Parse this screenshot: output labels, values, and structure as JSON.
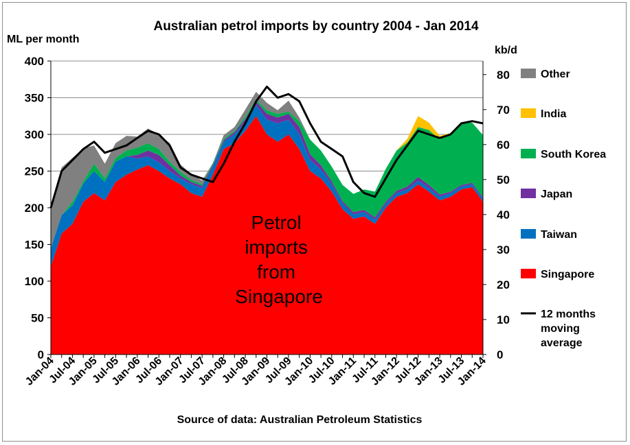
{
  "chart_data": {
    "type": "area",
    "stacked": true,
    "title": "Australian  petrol  imports  by country  2004 - Jan 2014",
    "ylabel": "ML per month",
    "y2label": "kb/d",
    "source": "Source of data: Australian Petroleum Statistics",
    "annotation": [
      "Petrol",
      "imports",
      "from",
      "Singapore"
    ],
    "ylim": [
      0,
      400
    ],
    "y2lim": [
      0,
      83.88
    ],
    "yticks": [
      0,
      50,
      100,
      150,
      200,
      250,
      300,
      350,
      400
    ],
    "y2ticks": [
      0,
      10,
      20,
      30,
      40,
      50,
      60,
      70,
      80
    ],
    "x_ticks": [
      "Jan-04",
      "Jul-04",
      "Jan-05",
      "Jul-05",
      "Jan-06",
      "Jul-06",
      "Jan-07",
      "Jul-07",
      "Jan-08",
      "Jul-08",
      "Jan-09",
      "Jul-09",
      "Jan-10",
      "Jul-10",
      "Jan-11",
      "Jul-11",
      "Jan-12",
      "Jul-12",
      "Jan-13",
      "Jul-13",
      "Jan-14"
    ],
    "grid": "horizontal",
    "legend_position": "right",
    "series_order": [
      "Singapore",
      "Taiwan",
      "Japan",
      "South Korea",
      "India",
      "Other"
    ],
    "x": [
      "2004-01",
      "2004-04",
      "2004-07",
      "2004-10",
      "2005-01",
      "2005-04",
      "2005-07",
      "2005-10",
      "2006-01",
      "2006-04",
      "2006-07",
      "2006-10",
      "2007-01",
      "2007-04",
      "2007-07",
      "2007-10",
      "2008-01",
      "2008-04",
      "2008-07",
      "2008-10",
      "2009-01",
      "2009-04",
      "2009-07",
      "2009-10",
      "2010-01",
      "2010-04",
      "2010-07",
      "2010-10",
      "2011-01",
      "2011-04",
      "2011-07",
      "2011-10",
      "2012-01",
      "2012-04",
      "2012-07",
      "2012-10",
      "2013-01",
      "2013-04",
      "2013-07",
      "2013-10",
      "2014-01"
    ],
    "series": [
      {
        "name": "Singapore",
        "color": "#ff0000",
        "values": [
          120,
          165,
          178,
          208,
          220,
          210,
          235,
          245,
          252,
          258,
          250,
          240,
          232,
          220,
          215,
          245,
          280,
          288,
          305,
          325,
          300,
          290,
          300,
          280,
          250,
          240,
          222,
          198,
          185,
          188,
          178,
          200,
          215,
          220,
          232,
          222,
          210,
          215,
          225,
          228,
          208
        ]
      },
      {
        "name": "Taiwan",
        "color": "#0070c0",
        "values": [
          25,
          25,
          25,
          25,
          30,
          25,
          28,
          25,
          15,
          12,
          12,
          10,
          8,
          12,
          12,
          12,
          10,
          12,
          12,
          15,
          20,
          25,
          20,
          20,
          15,
          12,
          10,
          8,
          6,
          6,
          6,
          5,
          5,
          5,
          5,
          5,
          5,
          5,
          4,
          4,
          4
        ]
      },
      {
        "name": "Japan",
        "color": "#7030a0",
        "values": [
          0,
          0,
          0,
          0,
          0,
          0,
          0,
          0,
          5,
          8,
          10,
          8,
          4,
          3,
          3,
          2,
          2,
          3,
          4,
          5,
          8,
          8,
          8,
          10,
          8,
          6,
          4,
          3,
          3,
          3,
          3,
          3,
          3,
          4,
          5,
          4,
          3,
          2,
          2,
          2,
          2
        ]
      },
      {
        "name": "South Korea",
        "color": "#00b050",
        "values": [
          0,
          0,
          5,
          3,
          10,
          5,
          5,
          8,
          10,
          10,
          8,
          5,
          5,
          3,
          2,
          2,
          2,
          2,
          3,
          3,
          5,
          5,
          3,
          8,
          20,
          20,
          20,
          22,
          25,
          28,
          35,
          45,
          55,
          60,
          68,
          75,
          75,
          80,
          85,
          82,
          85
        ]
      },
      {
        "name": "India",
        "color": "#ffc000",
        "values": [
          0,
          0,
          0,
          0,
          0,
          0,
          0,
          0,
          0,
          0,
          0,
          0,
          0,
          0,
          0,
          0,
          0,
          0,
          0,
          0,
          0,
          0,
          0,
          0,
          0,
          0,
          0,
          0,
          0,
          0,
          0,
          0,
          0,
          5,
          15,
          10,
          5,
          0,
          0,
          0,
          0
        ]
      },
      {
        "name": "Other",
        "color": "#808080",
        "values": [
          55,
          65,
          60,
          45,
          25,
          20,
          20,
          20,
          15,
          20,
          20,
          25,
          10,
          8,
          5,
          0,
          5,
          5,
          10,
          10,
          10,
          5,
          15,
          5,
          0,
          0,
          0,
          0,
          0,
          0,
          0,
          0,
          0,
          0,
          0,
          0,
          0,
          0,
          0,
          0,
          0
        ]
      }
    ],
    "moving_average": {
      "name": "12 months moving average",
      "color": "#000000",
      "values": [
        200,
        250,
        265,
        280,
        290,
        275,
        280,
        285,
        295,
        305,
        300,
        285,
        255,
        245,
        240,
        235,
        260,
        290,
        315,
        345,
        365,
        350,
        355,
        345,
        315,
        290,
        280,
        270,
        235,
        220,
        215,
        240,
        265,
        285,
        305,
        300,
        295,
        300,
        315,
        318,
        315
      ]
    }
  },
  "legend": {
    "other": "Other",
    "india": "India",
    "south_korea": "South Korea",
    "japan": "Japan",
    "taiwan": "Taiwan",
    "singapore": "Singapore",
    "ma_line1": "12 months",
    "ma_line2": "moving",
    "ma_line3": "average"
  }
}
